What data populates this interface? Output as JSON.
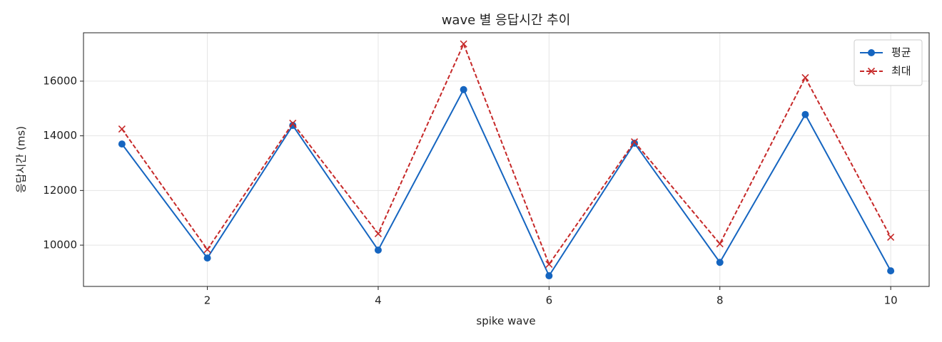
{
  "chart_data": {
    "type": "line",
    "title": "wave 별 응답시간 추이",
    "x_label": "spike wave",
    "y_label": "응답시간 (ms)",
    "x": [
      1,
      2,
      3,
      4,
      5,
      6,
      7,
      8,
      9,
      10
    ],
    "series": [
      {
        "name": "평균",
        "color": "#1565c0",
        "marker": "o",
        "linestyle": "solid",
        "values": [
          13700,
          9530,
          14380,
          9820,
          15690,
          8880,
          13730,
          9370,
          14780,
          9060
        ]
      },
      {
        "name": "최대",
        "color": "#c62828",
        "marker": "x",
        "linestyle": "dashed",
        "values": [
          14250,
          9840,
          14460,
          10420,
          17360,
          9300,
          13780,
          10050,
          16130,
          10290
        ]
      }
    ],
    "xlim": [
      0.55,
      10.45
    ],
    "xticks": [
      2,
      4,
      6,
      8,
      10
    ],
    "ylim": [
      8490,
      17770
    ],
    "yticks": [
      10000,
      12000,
      14000,
      16000
    ],
    "grid": true,
    "legend": "upper right"
  }
}
